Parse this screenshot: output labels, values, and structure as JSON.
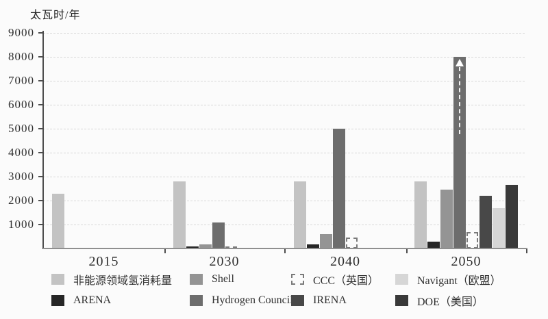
{
  "chart_data": {
    "type": "bar",
    "grouped": true,
    "y_axis_title": "太瓦时/年",
    "categories": [
      "2015",
      "2030",
      "2040",
      "2050"
    ],
    "ylim": [
      0,
      9000
    ],
    "yticks": [
      1000,
      2000,
      3000,
      4000,
      5000,
      6000,
      7000,
      8000,
      9000
    ],
    "grid": "horizontal-dashed",
    "series": [
      {
        "name": "非能源领域氢消耗量",
        "color": "#c3c3c3",
        "swatch": "solid",
        "values": [
          2300,
          2800,
          2800,
          2800
        ]
      },
      {
        "name": "ARENA",
        "color": "#262626",
        "swatch": "solid",
        "values": [
          null,
          80,
          160,
          300
        ]
      },
      {
        "name": "Shell",
        "color": "#949494",
        "swatch": "solid",
        "values": [
          null,
          180,
          600,
          2450
        ]
      },
      {
        "name": "Hydrogen Council",
        "color": "#6d6d6d",
        "swatch": "solid",
        "values": [
          null,
          1100,
          5000,
          8000
        ]
      },
      {
        "name": "CCC（英国）",
        "color": "#fbfbfb",
        "swatch": "dashed",
        "values": [
          null,
          80,
          450,
          700
        ]
      },
      {
        "name": "IRENA",
        "color": "#484848",
        "swatch": "solid",
        "values": [
          null,
          null,
          null,
          2200
        ]
      },
      {
        "name": "Navigant（欧盟）",
        "color": "#d6d6d6",
        "swatch": "solid",
        "values": [
          null,
          null,
          null,
          1700
        ]
      },
      {
        "name": "DOE（美国）",
        "color": "#393939",
        "swatch": "solid",
        "values": [
          null,
          null,
          null,
          2650
        ]
      }
    ],
    "overflow_arrow": {
      "series": "Hydrogen Council",
      "category": "2050",
      "meaning": "bar reaches top value 8000 with dashed up-arrow indicating it exceeds the scale"
    },
    "legend_rows": [
      [
        "非能源领域氢消耗量",
        "Shell",
        "CCC（英国）",
        "Navigant（欧盟）"
      ],
      [
        "ARENA",
        "Hydrogen Council",
        "IRENA",
        "DOE（美国）"
      ]
    ],
    "legend_position": "bottom"
  }
}
